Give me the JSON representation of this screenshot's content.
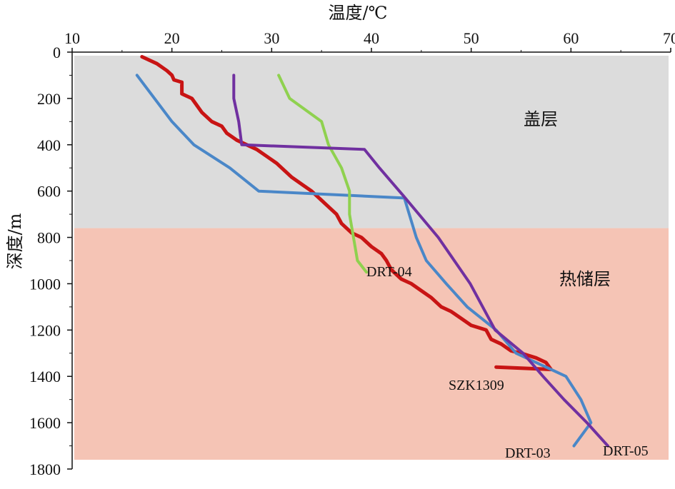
{
  "chart_data": {
    "type": "line",
    "title": "",
    "xlabel": "温度/℃",
    "ylabel": "深度/m",
    "x_axis_position": "top",
    "y_axis_inverted": true,
    "xlim": [
      10,
      70
    ],
    "ylim": [
      0,
      1800
    ],
    "x_ticks": [
      10,
      20,
      30,
      40,
      50,
      60,
      70
    ],
    "y_ticks": [
      0,
      200,
      400,
      600,
      800,
      1000,
      1200,
      1400,
      1600,
      1800
    ],
    "grid": false,
    "zones": [
      {
        "label": "盖层",
        "depth_range": [
          0,
          760
        ],
        "color": "#dcdcdc"
      },
      {
        "label": "热储层",
        "depth_range": [
          760,
          1760
        ],
        "color": "#f5c4b5"
      }
    ],
    "series": [
      {
        "name": "SZK1309",
        "color": "#c81414",
        "points": [
          [
            17.0,
            20
          ],
          [
            18.5,
            50
          ],
          [
            19.5,
            80
          ],
          [
            20,
            100
          ],
          [
            20.2,
            120
          ],
          [
            21,
            130
          ],
          [
            21,
            180
          ],
          [
            22,
            200
          ],
          [
            22.5,
            230
          ],
          [
            23,
            260
          ],
          [
            24,
            300
          ],
          [
            25,
            320
          ],
          [
            25.5,
            350
          ],
          [
            26.5,
            380
          ],
          [
            27.5,
            400
          ],
          [
            28.5,
            420
          ],
          [
            29.5,
            450
          ],
          [
            30.5,
            480
          ],
          [
            31,
            500
          ],
          [
            32,
            540
          ],
          [
            33,
            570
          ],
          [
            34,
            600
          ],
          [
            35,
            640
          ],
          [
            35.5,
            660
          ],
          [
            36.5,
            700
          ],
          [
            37,
            740
          ],
          [
            38,
            780
          ],
          [
            39,
            800
          ],
          [
            40,
            840
          ],
          [
            41,
            870
          ],
          [
            41.5,
            900
          ],
          [
            42,
            940
          ],
          [
            43,
            980
          ],
          [
            44,
            1000
          ],
          [
            45,
            1030
          ],
          [
            46,
            1060
          ],
          [
            46.5,
            1080
          ],
          [
            47,
            1100
          ],
          [
            48,
            1120
          ],
          [
            49,
            1150
          ],
          [
            50,
            1180
          ],
          [
            51.5,
            1200
          ],
          [
            52,
            1240
          ],
          [
            53,
            1260
          ],
          [
            54,
            1290
          ],
          [
            55,
            1300
          ],
          [
            56.5,
            1320
          ],
          [
            57.5,
            1340
          ],
          [
            58,
            1370
          ],
          [
            52.5,
            1360
          ]
        ]
      },
      {
        "name": "DRT-03",
        "color": "#4a87c8",
        "points": [
          [
            16.5,
            100
          ],
          [
            20,
            300
          ],
          [
            22.2,
            400
          ],
          [
            25.8,
            500
          ],
          [
            28.7,
            600
          ],
          [
            43.3,
            630
          ],
          [
            44.5,
            800
          ],
          [
            45.5,
            900
          ],
          [
            47.5,
            1000
          ],
          [
            49.6,
            1100
          ],
          [
            52.5,
            1200
          ],
          [
            54.5,
            1300
          ],
          [
            59.5,
            1400
          ],
          [
            61,
            1500
          ],
          [
            62,
            1600
          ],
          [
            60.3,
            1700
          ]
        ]
      },
      {
        "name": "DRT-04",
        "color": "#8fd14f",
        "points": [
          [
            30.7,
            100
          ],
          [
            31.8,
            200
          ],
          [
            35,
            300
          ],
          [
            35.7,
            400
          ],
          [
            37,
            500
          ],
          [
            37.8,
            600
          ],
          [
            37.8,
            700
          ],
          [
            38.2,
            800
          ],
          [
            38.6,
            900
          ],
          [
            39.5,
            950
          ]
        ]
      },
      {
        "name": "DRT-05",
        "color": "#7030a0",
        "points": [
          [
            26.2,
            100
          ],
          [
            26.2,
            200
          ],
          [
            26.7,
            300
          ],
          [
            27,
            400
          ],
          [
            39.3,
            420
          ],
          [
            40.8,
            500
          ],
          [
            42.8,
            600
          ],
          [
            43.2,
            620
          ],
          [
            46.7,
            800
          ],
          [
            49.9,
            1000
          ],
          [
            52.4,
            1200
          ],
          [
            55.2,
            1300
          ],
          [
            57.2,
            1400
          ],
          [
            59.3,
            1500
          ],
          [
            61.6,
            1600
          ],
          [
            63.7,
            1700
          ]
        ]
      }
    ],
    "annotations": [
      {
        "text": "DRT-04",
        "series": "DRT-04"
      },
      {
        "text": "SZK1309",
        "series": "SZK1309"
      },
      {
        "text": "DRT-03",
        "series": "DRT-03"
      },
      {
        "text": "DRT-05",
        "series": "DRT-05"
      }
    ]
  }
}
